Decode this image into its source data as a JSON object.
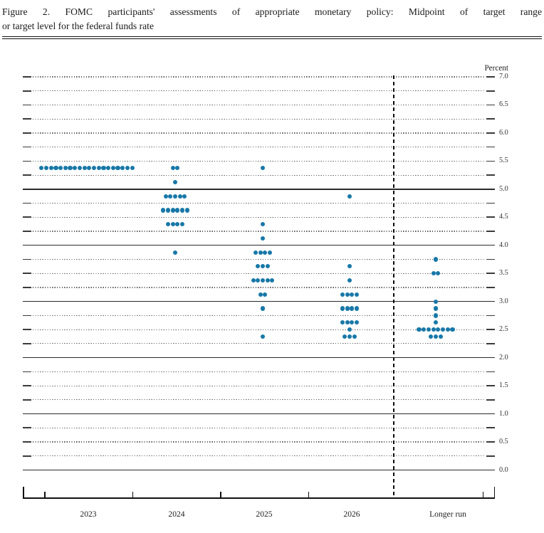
{
  "figure": {
    "title_line1": "Figure 2.  FOMC participants' assessments of appropriate monetary policy:  Midpoint of target range",
    "title_line2": "or target level for the federal funds rate"
  },
  "chart_data": {
    "type": "scatter",
    "subtype": "fomc-dot-plot",
    "title": "FOMC participants' assessments of appropriate monetary policy: Midpoint of target range or target level for the federal funds rate",
    "ylabel": "Percent",
    "ylim": [
      0.0,
      7.0
    ],
    "y_minor_step": 0.25,
    "y_label_step": 0.5,
    "grid": "dotted-quarter-point",
    "solid_gridlines": [
      5.0,
      4.0,
      3.0,
      2.0,
      1.0,
      0.0
    ],
    "y_axis_labels": [
      "7.0",
      "6.5",
      "6.0",
      "5.5",
      "5.0",
      "4.5",
      "4.0",
      "3.5",
      "3.0",
      "2.5",
      "2.0",
      "1.5",
      "1.0",
      "0.5",
      "0.0"
    ],
    "percent_label": "Percent",
    "categories": [
      "2023",
      "2024",
      "2025",
      "2026",
      "Longer run"
    ],
    "separator_before_category": "Longer run",
    "dot_color": "#1878a8",
    "series": [
      {
        "name": "2023",
        "dots": [
          {
            "rate": 5.375,
            "count": 20
          }
        ]
      },
      {
        "name": "2024",
        "dots": [
          {
            "rate": 5.375,
            "count": 2
          },
          {
            "rate": 5.125,
            "count": 1
          },
          {
            "rate": 4.875,
            "count": 5
          },
          {
            "rate": 4.625,
            "count": 6
          },
          {
            "rate": 4.375,
            "count": 4
          },
          {
            "rate": 3.875,
            "count": 1
          }
        ]
      },
      {
        "name": "2025",
        "dots": [
          {
            "rate": 5.375,
            "count": 1
          },
          {
            "rate": 4.375,
            "count": 1
          },
          {
            "rate": 4.125,
            "count": 1
          },
          {
            "rate": 3.875,
            "count": 4
          },
          {
            "rate": 3.625,
            "count": 3
          },
          {
            "rate": 3.375,
            "count": 5
          },
          {
            "rate": 3.125,
            "count": 2
          },
          {
            "rate": 2.875,
            "count": 1
          },
          {
            "rate": 2.375,
            "count": 1
          }
        ]
      },
      {
        "name": "2026",
        "dots": [
          {
            "rate": 4.875,
            "count": 1
          },
          {
            "rate": 3.625,
            "count": 1
          },
          {
            "rate": 3.375,
            "count": 1
          },
          {
            "rate": 3.125,
            "count": 4
          },
          {
            "rate": 2.875,
            "count": 4
          },
          {
            "rate": 2.625,
            "count": 4
          },
          {
            "rate": 2.5,
            "count": 1
          },
          {
            "rate": 2.375,
            "count": 3
          }
        ]
      },
      {
        "name": "Longer run",
        "dots": [
          {
            "rate": 3.75,
            "count": 1
          },
          {
            "rate": 3.5,
            "count": 2
          },
          {
            "rate": 3.0,
            "count": 1
          },
          {
            "rate": 2.875,
            "count": 1
          },
          {
            "rate": 2.75,
            "count": 1
          },
          {
            "rate": 2.625,
            "count": 1
          },
          {
            "rate": 2.5,
            "count": 8
          },
          {
            "rate": 2.375,
            "count": 3
          }
        ]
      }
    ]
  }
}
